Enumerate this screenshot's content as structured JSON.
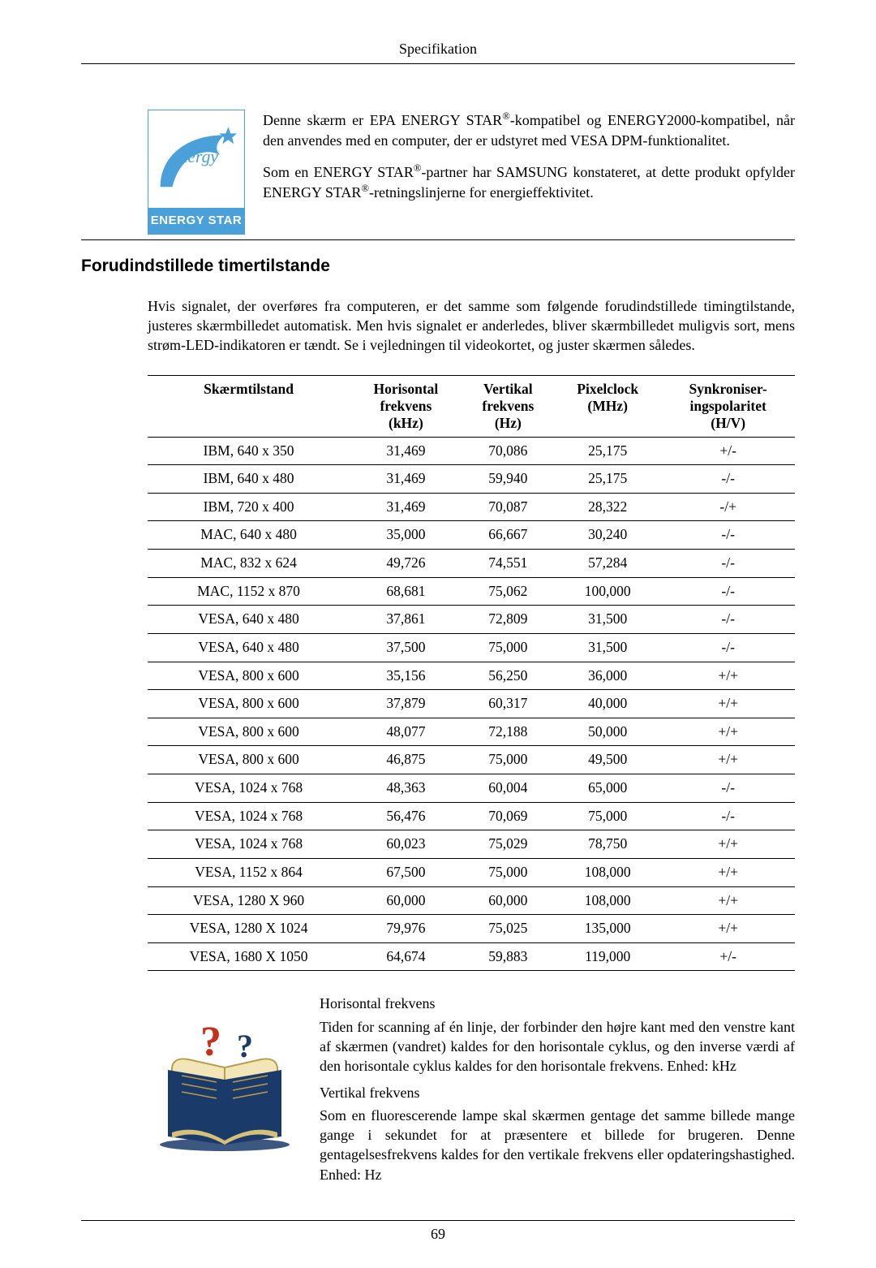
{
  "header": {
    "title": "Specifikation"
  },
  "energy": {
    "logo_label": "ENERGY STAR",
    "para1": "Denne skærm er EPA ENERGY STAR®-kompatibel og ENERGY2000-kompatibel, når den anvendes med en computer, der er udstyret med VESA DPM-funktionalitet.",
    "para2": "Som en ENERGY STAR®-partner har SAMSUNG konstateret, at dette produkt opfylder ENERGY STAR®-retningslinjerne for energieffektivitet."
  },
  "section_heading": "Forudindstillede timertilstande",
  "intro": "Hvis signalet, der overføres fra computeren, er det samme som følgende forudindstillede timingtilstande, justeres skærmbilledet automatisk. Men hvis signalet er anderledes, bliver skærmbilledet muligvis sort, mens strøm-LED-indikatoren er tændt. Se i vejledningen til videokortet, og juster skærmen således.",
  "table": {
    "columns": [
      "Skærmtilstand",
      "Horisontal frekvens (kHz)",
      "Vertikal frekvens (Hz)",
      "Pixelclock (MHz)",
      "Synkroniseringspolaritet (H/V)"
    ],
    "col_headers_html": [
      "Skærmtilstand",
      "Horisontal<br>frekvens<br>(kHz)",
      "Vertikal<br>frekvens<br>(Hz)",
      "Pixelclock<br>(MHz)",
      "Synkroniser-<br>ingspolaritet<br>(H/V)"
    ],
    "rows": [
      [
        "IBM, 640 x 350",
        "31,469",
        "70,086",
        "25,175",
        "+/-"
      ],
      [
        "IBM, 640 x 480",
        "31,469",
        "59,940",
        "25,175",
        "-/-"
      ],
      [
        "IBM, 720 x 400",
        "31,469",
        "70,087",
        "28,322",
        "-/+"
      ],
      [
        "MAC, 640 x 480",
        "35,000",
        "66,667",
        "30,240",
        "-/-"
      ],
      [
        "MAC, 832 x 624",
        "49,726",
        "74,551",
        "57,284",
        "-/-"
      ],
      [
        "MAC, 1152 x 870",
        "68,681",
        "75,062",
        "100,000",
        "-/-"
      ],
      [
        "VESA, 640 x 480",
        "37,861",
        "72,809",
        "31,500",
        "-/-"
      ],
      [
        "VESA, 640 x 480",
        "37,500",
        "75,000",
        "31,500",
        "-/-"
      ],
      [
        "VESA, 800 x 600",
        "35,156",
        "56,250",
        "36,000",
        "+/+"
      ],
      [
        "VESA, 800 x 600",
        "37,879",
        "60,317",
        "40,000",
        "+/+"
      ],
      [
        "VESA, 800 x 600",
        "48,077",
        "72,188",
        "50,000",
        "+/+"
      ],
      [
        "VESA, 800 x 600",
        "46,875",
        "75,000",
        "49,500",
        "+/+"
      ],
      [
        "VESA, 1024 x 768",
        "48,363",
        "60,004",
        "65,000",
        "-/-"
      ],
      [
        "VESA, 1024 x 768",
        "56,476",
        "70,069",
        "75,000",
        "-/-"
      ],
      [
        "VESA, 1024 x 768",
        "60,023",
        "75,029",
        "78,750",
        "+/+"
      ],
      [
        "VESA, 1152 x 864",
        "67,500",
        "75,000",
        "108,000",
        "+/+"
      ],
      [
        "VESA, 1280 X 960",
        "60,000",
        "60,000",
        "108,000",
        "+/+"
      ],
      [
        "VESA, 1280 X 1024",
        "79,976",
        "75,025",
        "135,000",
        "+/+"
      ],
      [
        "VESA, 1680 X 1050",
        "64,674",
        "59,883",
        "119,000",
        "+/-"
      ]
    ]
  },
  "freq": {
    "h_title": "Horisontal frekvens",
    "h_desc": "Tiden for scanning af én linje, der forbinder den højre kant med den venstre kant af skærmen (vandret) kaldes for den horisontale cyklus, og den inverse værdi af den horisontale cyklus kaldes for den horisontale frekvens. Enhed: kHz",
    "v_title": "Vertikal frekvens",
    "v_desc": "Som en fluorescerende lampe skal skærmen gentage det samme billede mange gange i sekundet for at præsentere et billede for brugeren. Denne gentagelsesfrekvens kaldes for den vertikale frekvens eller opdateringshastighed. Enhed: Hz"
  },
  "page_number": "69",
  "style": {
    "background": "#ffffff",
    "text_color": "#000000",
    "logo_border": "#4aa0d8",
    "logo_bg": "#4aa0d8"
  }
}
